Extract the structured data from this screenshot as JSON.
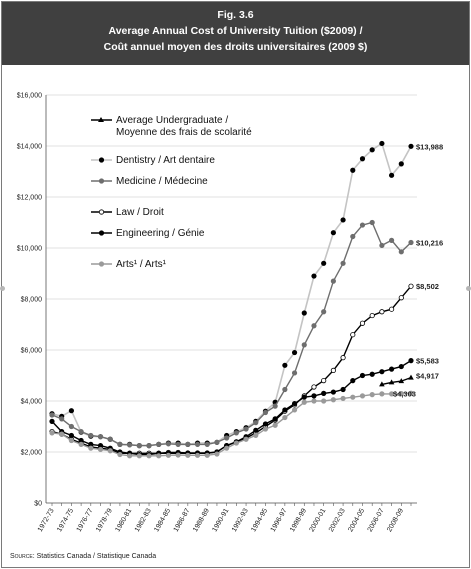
{
  "header": {
    "fig_label": "Fig. 3.6",
    "title_en": "Average Annual Cost of University Tuition ($2009) /",
    "title_fr": "Coût annuel moyen des droits universitaires (2009 $)"
  },
  "source": {
    "label": "Source:",
    "text": "Statistics Canada / Statistique Canada"
  },
  "chart_data": {
    "type": "line",
    "ylim": [
      0,
      16000
    ],
    "yticks": [
      0,
      2000,
      4000,
      6000,
      8000,
      10000,
      12000,
      14000,
      16000
    ],
    "ytick_labels": [
      "$0",
      "$2,000",
      "$4,000",
      "$6,000",
      "$8,000",
      "$10,000",
      "$12,000",
      "$14,000",
      "$16,000"
    ],
    "x": [
      "1972-73",
      "1973-74",
      "1974-75",
      "1975-76",
      "1976-77",
      "1977-78",
      "1978-79",
      "1979-80",
      "1980-81",
      "1981-82",
      "1982-83",
      "1983-84",
      "1984-85",
      "1985-86",
      "1986-87",
      "1987-88",
      "1988-89",
      "1989-90",
      "1990-91",
      "1991-92",
      "1992-93",
      "1993-94",
      "1994-95",
      "1995-96",
      "1996-97",
      "1997-98",
      "1998-99",
      "1999-00",
      "2000-01",
      "2001-02",
      "2002-03",
      "2003-04",
      "2004-05",
      "2005-06",
      "2006-07",
      "2007-08",
      "2008-09",
      "2009-10"
    ],
    "x_tick_labels": [
      "1972-73",
      "1974-75",
      "1976-77",
      "1978-79",
      "1980-81",
      "1982-83",
      "1984-85",
      "1986-87",
      "1988-89",
      "1990-91",
      "1992-93",
      "1994-95",
      "1996-97",
      "1998-99",
      "2000-01",
      "2002-03",
      "2004-05",
      "2006-07",
      "2008-09"
    ],
    "grid": "horizontal",
    "legend_placement": "top-left",
    "series": [
      {
        "name": "Average Undergraduate /",
        "name2": "Moyenne des frais de scolarité",
        "color": "#000000",
        "marker": "triangle",
        "marker_fill": "#000000",
        "values": [
          null,
          null,
          null,
          null,
          null,
          null,
          null,
          null,
          null,
          null,
          null,
          null,
          null,
          null,
          null,
          null,
          null,
          null,
          null,
          null,
          null,
          null,
          null,
          null,
          null,
          null,
          null,
          null,
          null,
          null,
          null,
          null,
          null,
          null,
          4650,
          4730,
          4780,
          4917
        ],
        "end_label": "$4,917"
      },
      {
        "name": "Dentistry / Art dentaire",
        "name2": "",
        "color": "#c4c4c4",
        "marker": "circle",
        "marker_fill": "#000000",
        "values": [
          3500,
          3400,
          3620,
          2780,
          2620,
          2600,
          2500,
          2300,
          2300,
          2250,
          2250,
          2300,
          2350,
          2350,
          2300,
          2350,
          2350,
          2380,
          2650,
          2800,
          2950,
          3200,
          3600,
          3950,
          5400,
          5900,
          7450,
          8900,
          9400,
          10600,
          11100,
          13050,
          13500,
          13850,
          14100,
          12850,
          13300,
          13988
        ],
        "end_label": "$13,988"
      },
      {
        "name": "Medicine / Médecine",
        "name2": "",
        "color": "#6e6e6e",
        "marker": "circle",
        "marker_fill": "#6e6e6e",
        "values": [
          3450,
          3300,
          3000,
          2800,
          2650,
          2600,
          2500,
          2300,
          2280,
          2250,
          2250,
          2300,
          2320,
          2300,
          2300,
          2300,
          2300,
          2380,
          2550,
          2750,
          2900,
          3150,
          3550,
          3800,
          4450,
          5100,
          6200,
          6950,
          7500,
          8700,
          9400,
          10450,
          10900,
          11000,
          10100,
          10300,
          9850,
          10216
        ],
        "end_label": "$10,216"
      },
      {
        "name": "Law / Droit",
        "name2": "",
        "color": "#000000",
        "marker": "circle",
        "marker_fill": "#ffffff",
        "values": [
          2800,
          2700,
          2500,
          2350,
          2200,
          2150,
          2100,
          1950,
          1950,
          1950,
          1950,
          1950,
          1980,
          1980,
          1960,
          1960,
          1960,
          2000,
          2250,
          2400,
          2550,
          2750,
          3000,
          3250,
          3600,
          3850,
          4200,
          4550,
          4800,
          5200,
          5700,
          6600,
          7050,
          7350,
          7500,
          7600,
          8050,
          8502
        ],
        "end_label": "$8,502"
      },
      {
        "name": "Engineering / Génie",
        "name2": "",
        "color": "#000000",
        "marker": "circle",
        "marker_fill": "#000000",
        "values": [
          3200,
          2800,
          2650,
          2450,
          2300,
          2250,
          2150,
          2000,
          1950,
          1900,
          1900,
          1950,
          1950,
          1950,
          1950,
          1950,
          1950,
          2000,
          2250,
          2400,
          2600,
          2850,
          3100,
          3300,
          3650,
          3900,
          4150,
          4200,
          4300,
          4350,
          4450,
          4800,
          5000,
          5050,
          5150,
          5250,
          5350,
          5583
        ],
        "end_label": "$5,583"
      },
      {
        "name": "Arts",
        "name2": "",
        "legend_text": "Arts¹ / Arts¹",
        "color": "#9a9a9a",
        "marker": "circle",
        "marker_fill": "#9a9a9a",
        "values": [
          2750,
          2700,
          2450,
          2300,
          2150,
          2100,
          2050,
          1900,
          1850,
          1850,
          1850,
          1850,
          1870,
          1880,
          1870,
          1870,
          1870,
          1920,
          2150,
          2350,
          2500,
          2650,
          2900,
          3050,
          3350,
          3650,
          3950,
          4000,
          4000,
          4050,
          4100,
          4150,
          4200,
          4250,
          4280,
          4280,
          4290,
          4303
        ],
        "end_label": "$4,303"
      }
    ]
  }
}
